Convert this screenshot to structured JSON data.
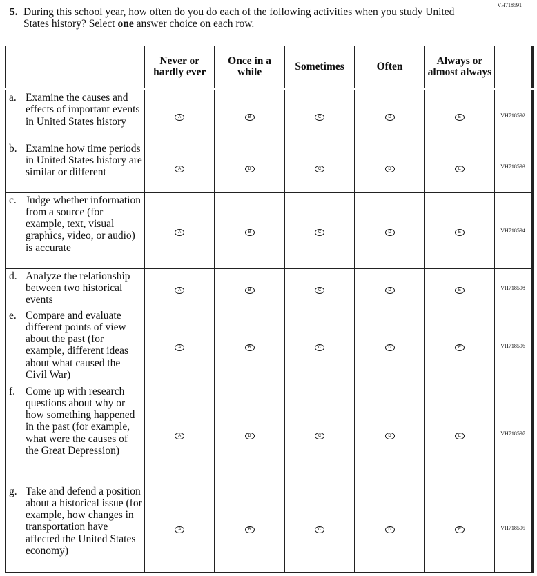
{
  "item_code": "VH718591",
  "question": {
    "number": "5.",
    "text_before": "During this school year, how often do you do each of the following activities when you study United States history? Select ",
    "text_bold": "one",
    "text_after": " answer choice on each row."
  },
  "columns": [
    "Never or hardly ever",
    "Once in a while",
    "Sometimes",
    "Often",
    "Always or almost always"
  ],
  "bubble_letters": [
    "A",
    "B",
    "C",
    "D",
    "E"
  ],
  "rows": [
    {
      "letter": "a.",
      "text": "Examine the causes and effects of important events in United States history",
      "code": "VH718592"
    },
    {
      "letter": "b.",
      "text": "Examine how time periods in United States history are similar or different",
      "code": "VH718593"
    },
    {
      "letter": "c.",
      "text": "Judge whether information from a source (for example, text, visual graphics, video, or audio) is accurate",
      "code": "VH718594"
    },
    {
      "letter": "d.",
      "text": "Analyze the relationship between two historical events",
      "code": "VH718598"
    },
    {
      "letter": "e.",
      "text": "Compare and evaluate different points of view about the past (for example, different ideas about what caused the Civil War)",
      "code": "VH718596"
    },
    {
      "letter": "f.",
      "text": "Come up with research questions about why or how something happened in the past (for example, what were the causes of the Great Depression)",
      "code": "VH718597"
    },
    {
      "letter": "g.",
      "text": "Take and defend a position about a historical issue (for example, how changes in transportation have affected the United States economy)",
      "code": "VH718595"
    }
  ]
}
